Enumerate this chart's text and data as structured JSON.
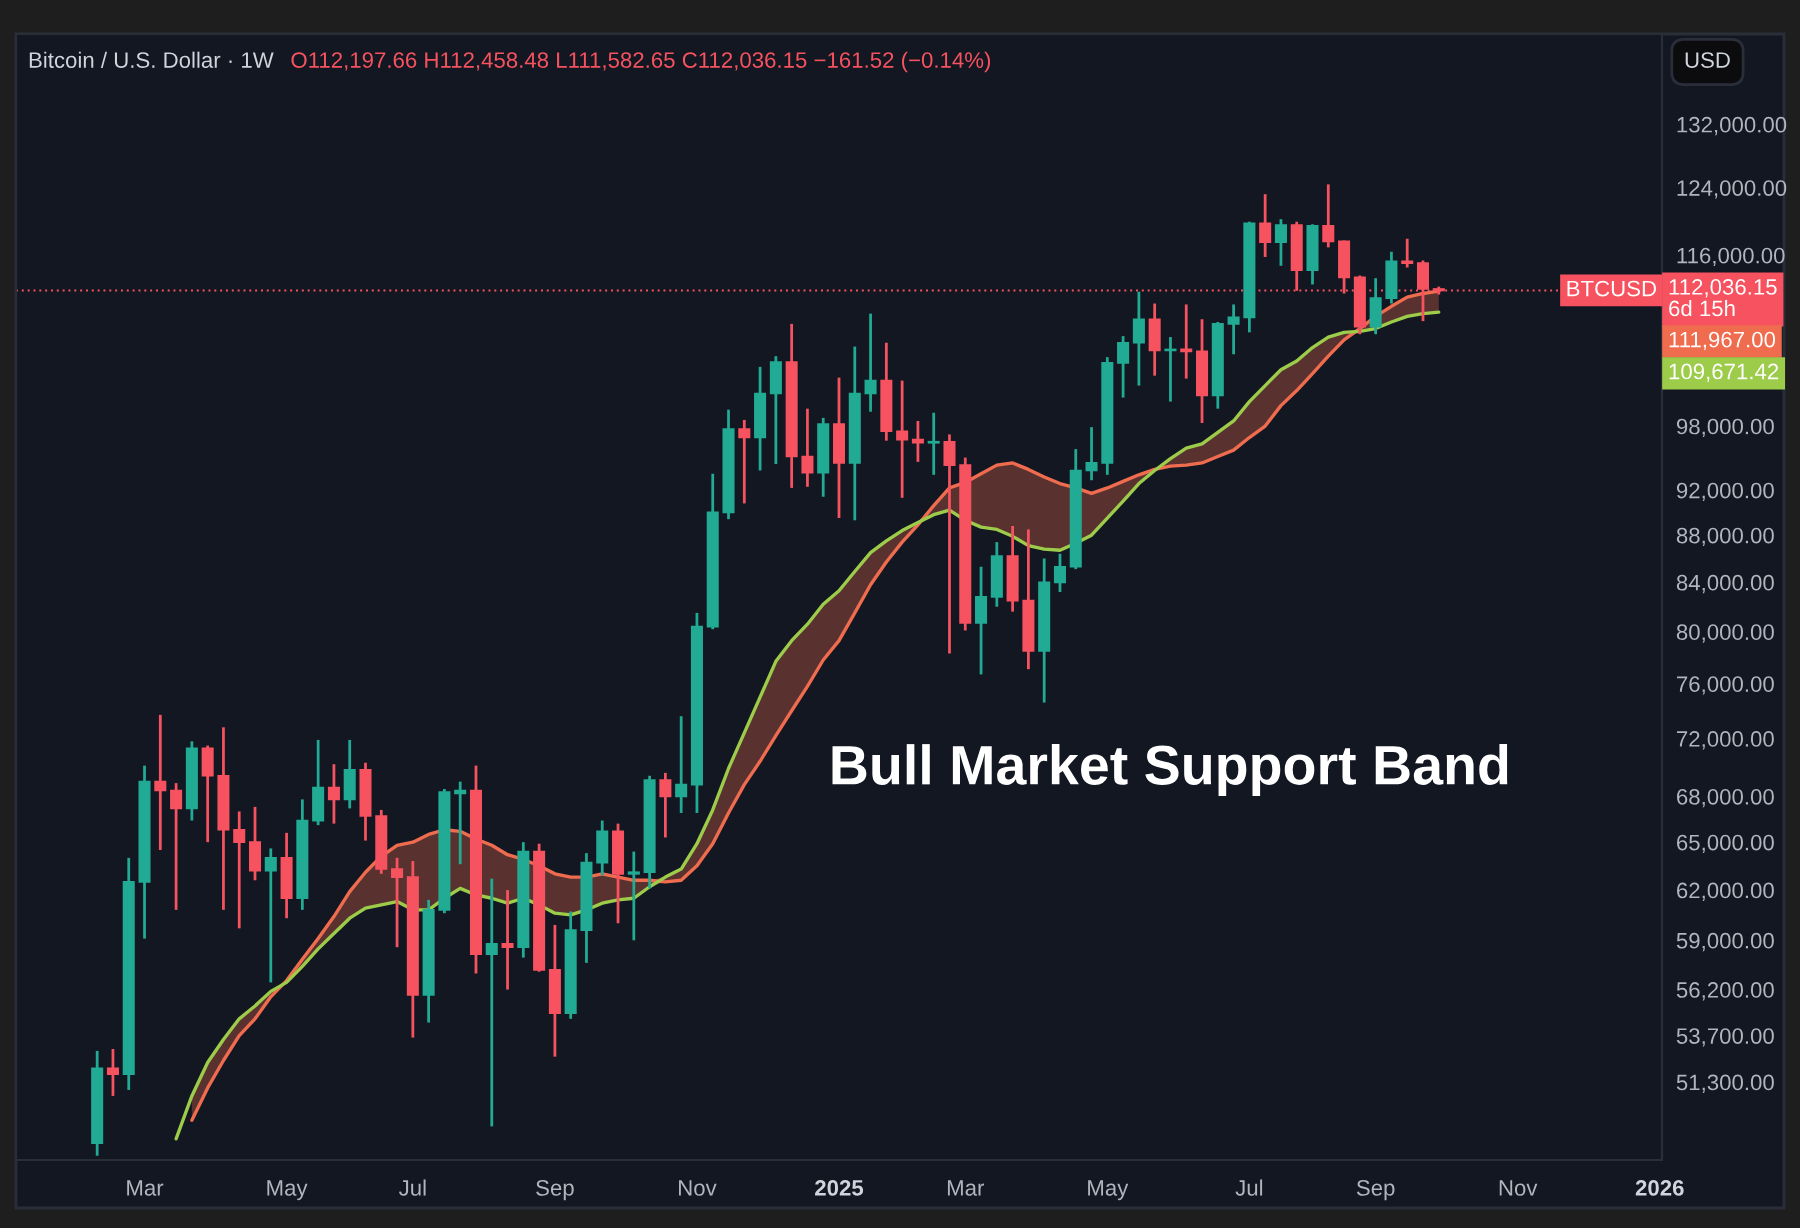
{
  "chart_data": {
    "type": "candlestick",
    "title": "Bitcoin / U.S. Dollar · 1W",
    "subtitle": "O112,197.66 H112,458.48 L111,582.65 C112,036.15 −161.52 (−0.14%)",
    "ylabel": "USD",
    "log": true,
    "x": [
      "2024-02-12",
      "2024-02-19",
      "2024-02-26",
      "2024-03-04",
      "2024-03-11",
      "2024-03-18",
      "2024-03-25",
      "2024-04-01",
      "2024-04-08",
      "2024-04-15",
      "2024-04-22",
      "2024-04-29",
      "2024-05-06",
      "2024-05-13",
      "2024-05-20",
      "2024-05-27",
      "2024-06-03",
      "2024-06-10",
      "2024-06-17",
      "2024-06-24",
      "2024-07-01",
      "2024-07-08",
      "2024-07-15",
      "2024-07-22",
      "2024-07-29",
      "2024-08-05",
      "2024-08-12",
      "2024-08-19",
      "2024-08-26",
      "2024-09-02",
      "2024-09-09",
      "2024-09-16",
      "2024-09-23",
      "2024-09-30",
      "2024-10-07",
      "2024-10-14",
      "2024-10-21",
      "2024-10-28",
      "2024-11-04",
      "2024-11-11",
      "2024-11-18",
      "2024-11-25",
      "2024-12-02",
      "2024-12-09",
      "2024-12-16",
      "2024-12-23",
      "2024-12-30",
      "2025-01-06",
      "2025-01-13",
      "2025-01-20",
      "2025-01-27",
      "2025-02-03",
      "2025-02-10",
      "2025-02-17",
      "2025-02-24",
      "2025-03-03",
      "2025-03-10",
      "2025-03-17",
      "2025-03-24",
      "2025-03-31",
      "2025-04-07",
      "2025-04-14",
      "2025-04-21",
      "2025-04-28",
      "2025-05-05",
      "2025-05-12",
      "2025-05-19",
      "2025-05-26",
      "2025-06-02",
      "2025-06-09",
      "2025-06-16",
      "2025-06-23",
      "2025-06-30",
      "2025-07-07",
      "2025-07-14",
      "2025-07-21",
      "2025-07-28",
      "2025-08-04",
      "2025-08-11",
      "2025-08-18",
      "2025-08-25",
      "2025-09-01",
      "2025-09-08",
      "2025-09-15",
      "2025-09-22",
      "2025-09-29"
    ],
    "ohlc": [
      [
        48300,
        52900,
        47700,
        52000
      ],
      [
        52000,
        53000,
        50600,
        51700
      ],
      [
        51700,
        64000,
        50900,
        62500
      ],
      [
        62500,
        70100,
        59100,
        69000
      ],
      [
        69000,
        73700,
        64500,
        68400
      ],
      [
        68400,
        68900,
        60800,
        67200
      ],
      [
        67200,
        71800,
        66400,
        71300
      ],
      [
        71300,
        71500,
        65000,
        69400
      ],
      [
        69400,
        72800,
        60800,
        65800
      ],
      [
        65800,
        67000,
        59700,
        65000
      ],
      [
        65000,
        67300,
        62600,
        63200
      ],
      [
        63200,
        64600,
        56600,
        64000
      ],
      [
        64000,
        65600,
        60300,
        61500
      ],
      [
        61500,
        67800,
        60800,
        66400
      ],
      [
        66400,
        71900,
        66100,
        68600
      ],
      [
        68600,
        70200,
        66200,
        67800
      ],
      [
        67800,
        71900,
        67200,
        69800
      ],
      [
        69800,
        70300,
        65100,
        66700
      ],
      [
        66700,
        67100,
        63000,
        63300
      ],
      [
        63300,
        64000,
        58600,
        62800
      ],
      [
        62800,
        63800,
        53600,
        55900
      ],
      [
        55900,
        61400,
        54400,
        60800
      ],
      [
        60800,
        68500,
        60600,
        68300
      ],
      [
        68200,
        69000,
        63600,
        68400
      ],
      [
        68400,
        70100,
        57100,
        58200
      ],
      [
        58200,
        62700,
        49100,
        58800
      ],
      [
        58800,
        62000,
        56200,
        58600
      ],
      [
        58600,
        65000,
        58000,
        64400
      ],
      [
        64400,
        64900,
        57200,
        57300
      ],
      [
        57300,
        59900,
        52600,
        54900
      ],
      [
        54900,
        60700,
        54600,
        59600
      ],
      [
        59600,
        64300,
        57700,
        63700
      ],
      [
        63700,
        66400,
        62900,
        65700
      ],
      [
        65700,
        66200,
        60000,
        63000
      ],
      [
        63000,
        64400,
        59000,
        63100
      ],
      [
        63100,
        69400,
        62100,
        69100
      ],
      [
        69100,
        69600,
        65300,
        68000
      ],
      [
        68000,
        73600,
        66900,
        68800
      ],
      [
        68800,
        81500,
        66900,
        80400
      ],
      [
        80400,
        93500,
        80200,
        90000
      ],
      [
        90000,
        99600,
        89400,
        97700
      ],
      [
        97700,
        98600,
        90800,
        96900
      ],
      [
        96900,
        103900,
        93800,
        101200
      ],
      [
        101200,
        105000,
        94400,
        104400
      ],
      [
        104400,
        108400,
        92200,
        95100
      ],
      [
        95100,
        99700,
        92300,
        93600
      ],
      [
        93600,
        98800,
        91400,
        98200
      ],
      [
        98200,
        102800,
        89500,
        94500
      ],
      [
        94500,
        106000,
        89300,
        101200
      ],
      [
        101200,
        109500,
        99400,
        102500
      ],
      [
        102500,
        106400,
        96600,
        97500
      ],
      [
        97500,
        102500,
        91300,
        96700
      ],
      [
        96700,
        98500,
        94600,
        96400
      ],
      [
        96400,
        99300,
        93400,
        96500
      ],
      [
        96500,
        97200,
        78300,
        94300
      ],
      [
        94300,
        95000,
        80100,
        80700
      ],
      [
        80700,
        85300,
        76700,
        82800
      ],
      [
        82800,
        87400,
        82000,
        86200
      ],
      [
        86200,
        88800,
        81600,
        82500
      ],
      [
        82500,
        88500,
        77100,
        78500
      ],
      [
        78500,
        86000,
        74600,
        84000
      ],
      [
        84000,
        86400,
        83200,
        85300
      ],
      [
        85300,
        95800,
        85100,
        93800
      ],
      [
        93800,
        97900,
        92900,
        94500
      ],
      [
        94500,
        104900,
        93400,
        104300
      ],
      [
        104300,
        107100,
        100800,
        106400
      ],
      [
        106400,
        111900,
        102000,
        108900
      ],
      [
        108900,
        110600,
        103000,
        105600
      ],
      [
        105600,
        107000,
        100400,
        105700
      ],
      [
        105700,
        110500,
        102700,
        105500
      ],
      [
        105500,
        108900,
        98300,
        101000
      ],
      [
        101000,
        108600,
        99700,
        108400
      ],
      [
        108400,
        110500,
        105200,
        109100
      ],
      [
        109100,
        119900,
        107500,
        119700
      ],
      [
        119700,
        123200,
        115800,
        117500
      ],
      [
        117500,
        120200,
        114800,
        119500
      ],
      [
        119500,
        119900,
        112000,
        114300
      ],
      [
        114300,
        119600,
        112700,
        119400
      ],
      [
        119400,
        124400,
        116900,
        117600
      ],
      [
        117600,
        117700,
        111700,
        113500
      ],
      [
        113500,
        113700,
        107300,
        108100
      ],
      [
        108100,
        113400,
        107300,
        111200
      ],
      [
        111200,
        116400,
        110600,
        115300
      ],
      [
        115300,
        117900,
        114600,
        115100
      ],
      [
        115100,
        115400,
        108700,
        112200
      ],
      [
        112197.66,
        112458.48,
        111582.65,
        112036.15
      ]
    ],
    "colors": [
      "#22ab94",
      "#f7525f",
      "#22ab94",
      "#22ab94",
      "#f7525f",
      "#f7525f",
      "#22ab94",
      "#f7525f",
      "#f7525f",
      "#f7525f",
      "#f7525f",
      "#22ab94",
      "#f7525f",
      "#22ab94",
      "#22ab94",
      "#f7525f",
      "#22ab94",
      "#f7525f",
      "#f7525f",
      "#f7525f",
      "#f7525f",
      "#22ab94",
      "#22ab94",
      "#22ab94",
      "#f7525f",
      "#22ab94",
      "#f7525f",
      "#22ab94",
      "#f7525f",
      "#f7525f",
      "#22ab94",
      "#22ab94",
      "#22ab94",
      "#f7525f",
      "#22ab94",
      "#22ab94",
      "#f7525f",
      "#22ab94",
      "#22ab94",
      "#22ab94",
      "#22ab94",
      "#f7525f",
      "#22ab94",
      "#22ab94",
      "#f7525f",
      "#f7525f",
      "#22ab94",
      "#f7525f",
      "#22ab94",
      "#22ab94",
      "#f7525f",
      "#f7525f",
      "#f7525f",
      "#22ab94",
      "#f7525f",
      "#f7525f",
      "#22ab94",
      "#22ab94",
      "#f7525f",
      "#f7525f",
      "#22ab94",
      "#22ab94",
      "#22ab94",
      "#22ab94",
      "#22ab94",
      "#22ab94",
      "#22ab94",
      "#f7525f",
      "#22ab94",
      "#f7525f",
      "#f7525f",
      "#22ab94",
      "#22ab94",
      "#22ab94",
      "#f7525f",
      "#22ab94",
      "#f7525f",
      "#22ab94",
      "#f7525f",
      "#f7525f",
      "#f7525f",
      "#22ab94",
      "#22ab94",
      "#f7525f",
      "#f7525f",
      "#f7525f"
    ],
    "value_labels": [
      null,
      null,
      null,
      null,
      null,
      null,
      null,
      null,
      null,
      null,
      null,
      null,
      null,
      null,
      null,
      null,
      null,
      null,
      null,
      null,
      null,
      null,
      null,
      null,
      null,
      null,
      null,
      null,
      null,
      null,
      null,
      null,
      null,
      null,
      null,
      null,
      null,
      null,
      null,
      null,
      null,
      null,
      null,
      null,
      null,
      null,
      null,
      null,
      null,
      null,
      null,
      null,
      null,
      null,
      null,
      null,
      null,
      null,
      null,
      null,
      null,
      null,
      null,
      null,
      null,
      null,
      null,
      null,
      null,
      null,
      null,
      null,
      null,
      null,
      null,
      null,
      null,
      null,
      null,
      null,
      null,
      null,
      null,
      null,
      null,
      "112,036.15\n6d 15h"
    ],
    "series": [
      {
        "type": "line",
        "color": "#f06c4f",
        "values": [
          null,
          null,
          null,
          null,
          null,
          null,
          49400,
          51000,
          52400,
          53700,
          54600,
          55800,
          56700,
          57900,
          59100,
          60400,
          61900,
          63100,
          64100,
          64800,
          65000,
          65500,
          65800,
          65700,
          65200,
          64800,
          64200,
          63900,
          63500,
          63000,
          62800,
          62800,
          63000,
          62800,
          62600,
          62600,
          62500,
          62600,
          63500,
          64900,
          66900,
          68800,
          70400,
          72200,
          74000,
          75800,
          77800,
          79300,
          81500,
          83800,
          85700,
          87400,
          88900,
          90600,
          92200,
          92700,
          93500,
          94300,
          94500,
          93900,
          93200,
          92600,
          92200,
          91700,
          92200,
          92800,
          93400,
          93900,
          94200,
          94300,
          94500,
          95100,
          95700,
          96900,
          98000,
          100000,
          101500,
          103200,
          105000,
          106700,
          107900,
          109200,
          110300,
          111300,
          111700,
          111967
        ],
        "lower": [
          null,
          null,
          null,
          null,
          null,
          null,
          49400,
          51000,
          52400,
          53700,
          54600,
          55800,
          56600,
          57500,
          58500,
          59400,
          60300,
          60900,
          61100,
          61300,
          60800,
          60800,
          61500,
          62100,
          61700,
          61500,
          61200,
          61500,
          61100,
          60600,
          60500,
          60800,
          61200,
          61400,
          61500,
          62200,
          62500,
          62600,
          63500,
          64900,
          66900,
          68800,
          70400,
          72200,
          74000,
          75800,
          77800,
          79300,
          81500,
          83800,
          85700,
          87400,
          88900,
          89800,
          90200,
          89300,
          88700,
          88500,
          87900,
          87100,
          86800,
          86700,
          87300,
          88000,
          89500,
          91000,
          92600,
          93800,
          94200,
          94300,
          94500,
          95100,
          95700,
          96900,
          98000,
          100000,
          101500,
          103200,
          105000,
          106700,
          107600,
          107900,
          108600,
          109200,
          109500,
          109671.42
        ],
        "upper": [
          null,
          null,
          null,
          null,
          null,
          null,
          50600,
          52300,
          53500,
          54600,
          55300,
          56100,
          56700,
          57900,
          59100,
          60400,
          61900,
          63100,
          64100,
          64800,
          65000,
          65500,
          65800,
          65700,
          65200,
          64800,
          64200,
          63900,
          63500,
          63000,
          62800,
          62800,
          63000,
          62800,
          62600,
          62600,
          62800,
          63300,
          64900,
          67100,
          69900,
          72400,
          75000,
          77700,
          79300,
          80600,
          82200,
          83300,
          84900,
          86500,
          87500,
          88400,
          89100,
          90600,
          92200,
          92700,
          93500,
          94300,
          94500,
          93900,
          93200,
          92600,
          92200,
          91700,
          92200,
          92800,
          93400,
          93900,
          94900,
          95900,
          96300,
          97400,
          98500,
          100400,
          102000,
          103600,
          104500,
          105900,
          107000,
          107500,
          107900,
          109200,
          110300,
          111300,
          111700,
          111967
        ]
      },
      {
        "type": "line",
        "color": "#9ccc4a",
        "values": [
          null,
          null,
          null,
          null,
          null,
          48500,
          50600,
          52300,
          53500,
          54600,
          55300,
          56100,
          56600,
          57500,
          58500,
          59400,
          60300,
          60900,
          61100,
          61300,
          60800,
          60800,
          61500,
          62100,
          61700,
          61500,
          61200,
          61500,
          61100,
          60600,
          60500,
          60800,
          61200,
          61400,
          61500,
          62200,
          62800,
          63300,
          64900,
          67100,
          69900,
          72400,
          75000,
          77700,
          79300,
          80600,
          82200,
          83300,
          84900,
          86500,
          87500,
          88400,
          89100,
          89800,
          90200,
          89300,
          88700,
          88500,
          87900,
          87100,
          86800,
          86700,
          87300,
          88000,
          89500,
          91000,
          92600,
          93800,
          94900,
          95900,
          96300,
          97400,
          98500,
          100400,
          102000,
          103600,
          104500,
          105900,
          107000,
          107500,
          107600,
          107900,
          108600,
          109200,
          109500,
          109671.42
        ]
      }
    ],
    "xlim": [
      "2024-01-07",
      "2026-01-06"
    ],
    "xticks": [
      {
        "value": "2024-03-04",
        "label": "Mar"
      },
      {
        "value": "2024-05-06",
        "label": "May"
      },
      {
        "value": "2024-07-01",
        "label": "Jul"
      },
      {
        "value": "2024-09-02",
        "label": "Sep"
      },
      {
        "value": "2024-11-04",
        "label": "Nov"
      },
      {
        "value": "2025-01-06",
        "label": "2025"
      },
      {
        "value": "2025-03-03",
        "label": "Mar"
      },
      {
        "value": "2025-05-05",
        "label": "May"
      },
      {
        "value": "2025-07-07",
        "label": "Jul"
      },
      {
        "value": "2025-09-01",
        "label": "Sep"
      },
      {
        "value": "2025-11-03",
        "label": "Nov"
      },
      {
        "value": "2026-01-05",
        "label": "2026"
      }
    ],
    "ylim": [
      47500,
      144300
    ],
    "yticks": [
      {
        "value": 51300,
        "label": "51,300.00"
      },
      {
        "value": 53700,
        "label": "53,700.00"
      },
      {
        "value": 56200,
        "label": "56,200.00"
      },
      {
        "value": 59000,
        "label": "59,000.00"
      },
      {
        "value": 62000,
        "label": "62,000.00"
      },
      {
        "value": 65000,
        "label": "65,000.00"
      },
      {
        "value": 68000,
        "label": "68,000.00"
      },
      {
        "value": 72000,
        "label": "72,000.00"
      },
      {
        "value": 76000,
        "label": "76,000.00"
      },
      {
        "value": 80000,
        "label": "80,000.00"
      },
      {
        "value": 84000,
        "label": "84,000.00"
      },
      {
        "value": 88000,
        "label": "88,000.00"
      },
      {
        "value": 92000,
        "label": "92,000.00"
      },
      {
        "value": 98000,
        "label": "98,000.00"
      },
      {
        "value": 116000,
        "label": "116,000.00"
      },
      {
        "value": 124000,
        "label": "124,000.00"
      },
      {
        "value": 132000,
        "label": "132,000.00"
      }
    ],
    "ref_lines": [
      {
        "axis": "y",
        "value": 112036.15,
        "label": "BTCUSD",
        "color": "#f7525f",
        "line_style": "dotted"
      }
    ],
    "annotations": [
      "111,967.00",
      "109,671.42",
      "Bull Market Support Band"
    ]
  }
}
